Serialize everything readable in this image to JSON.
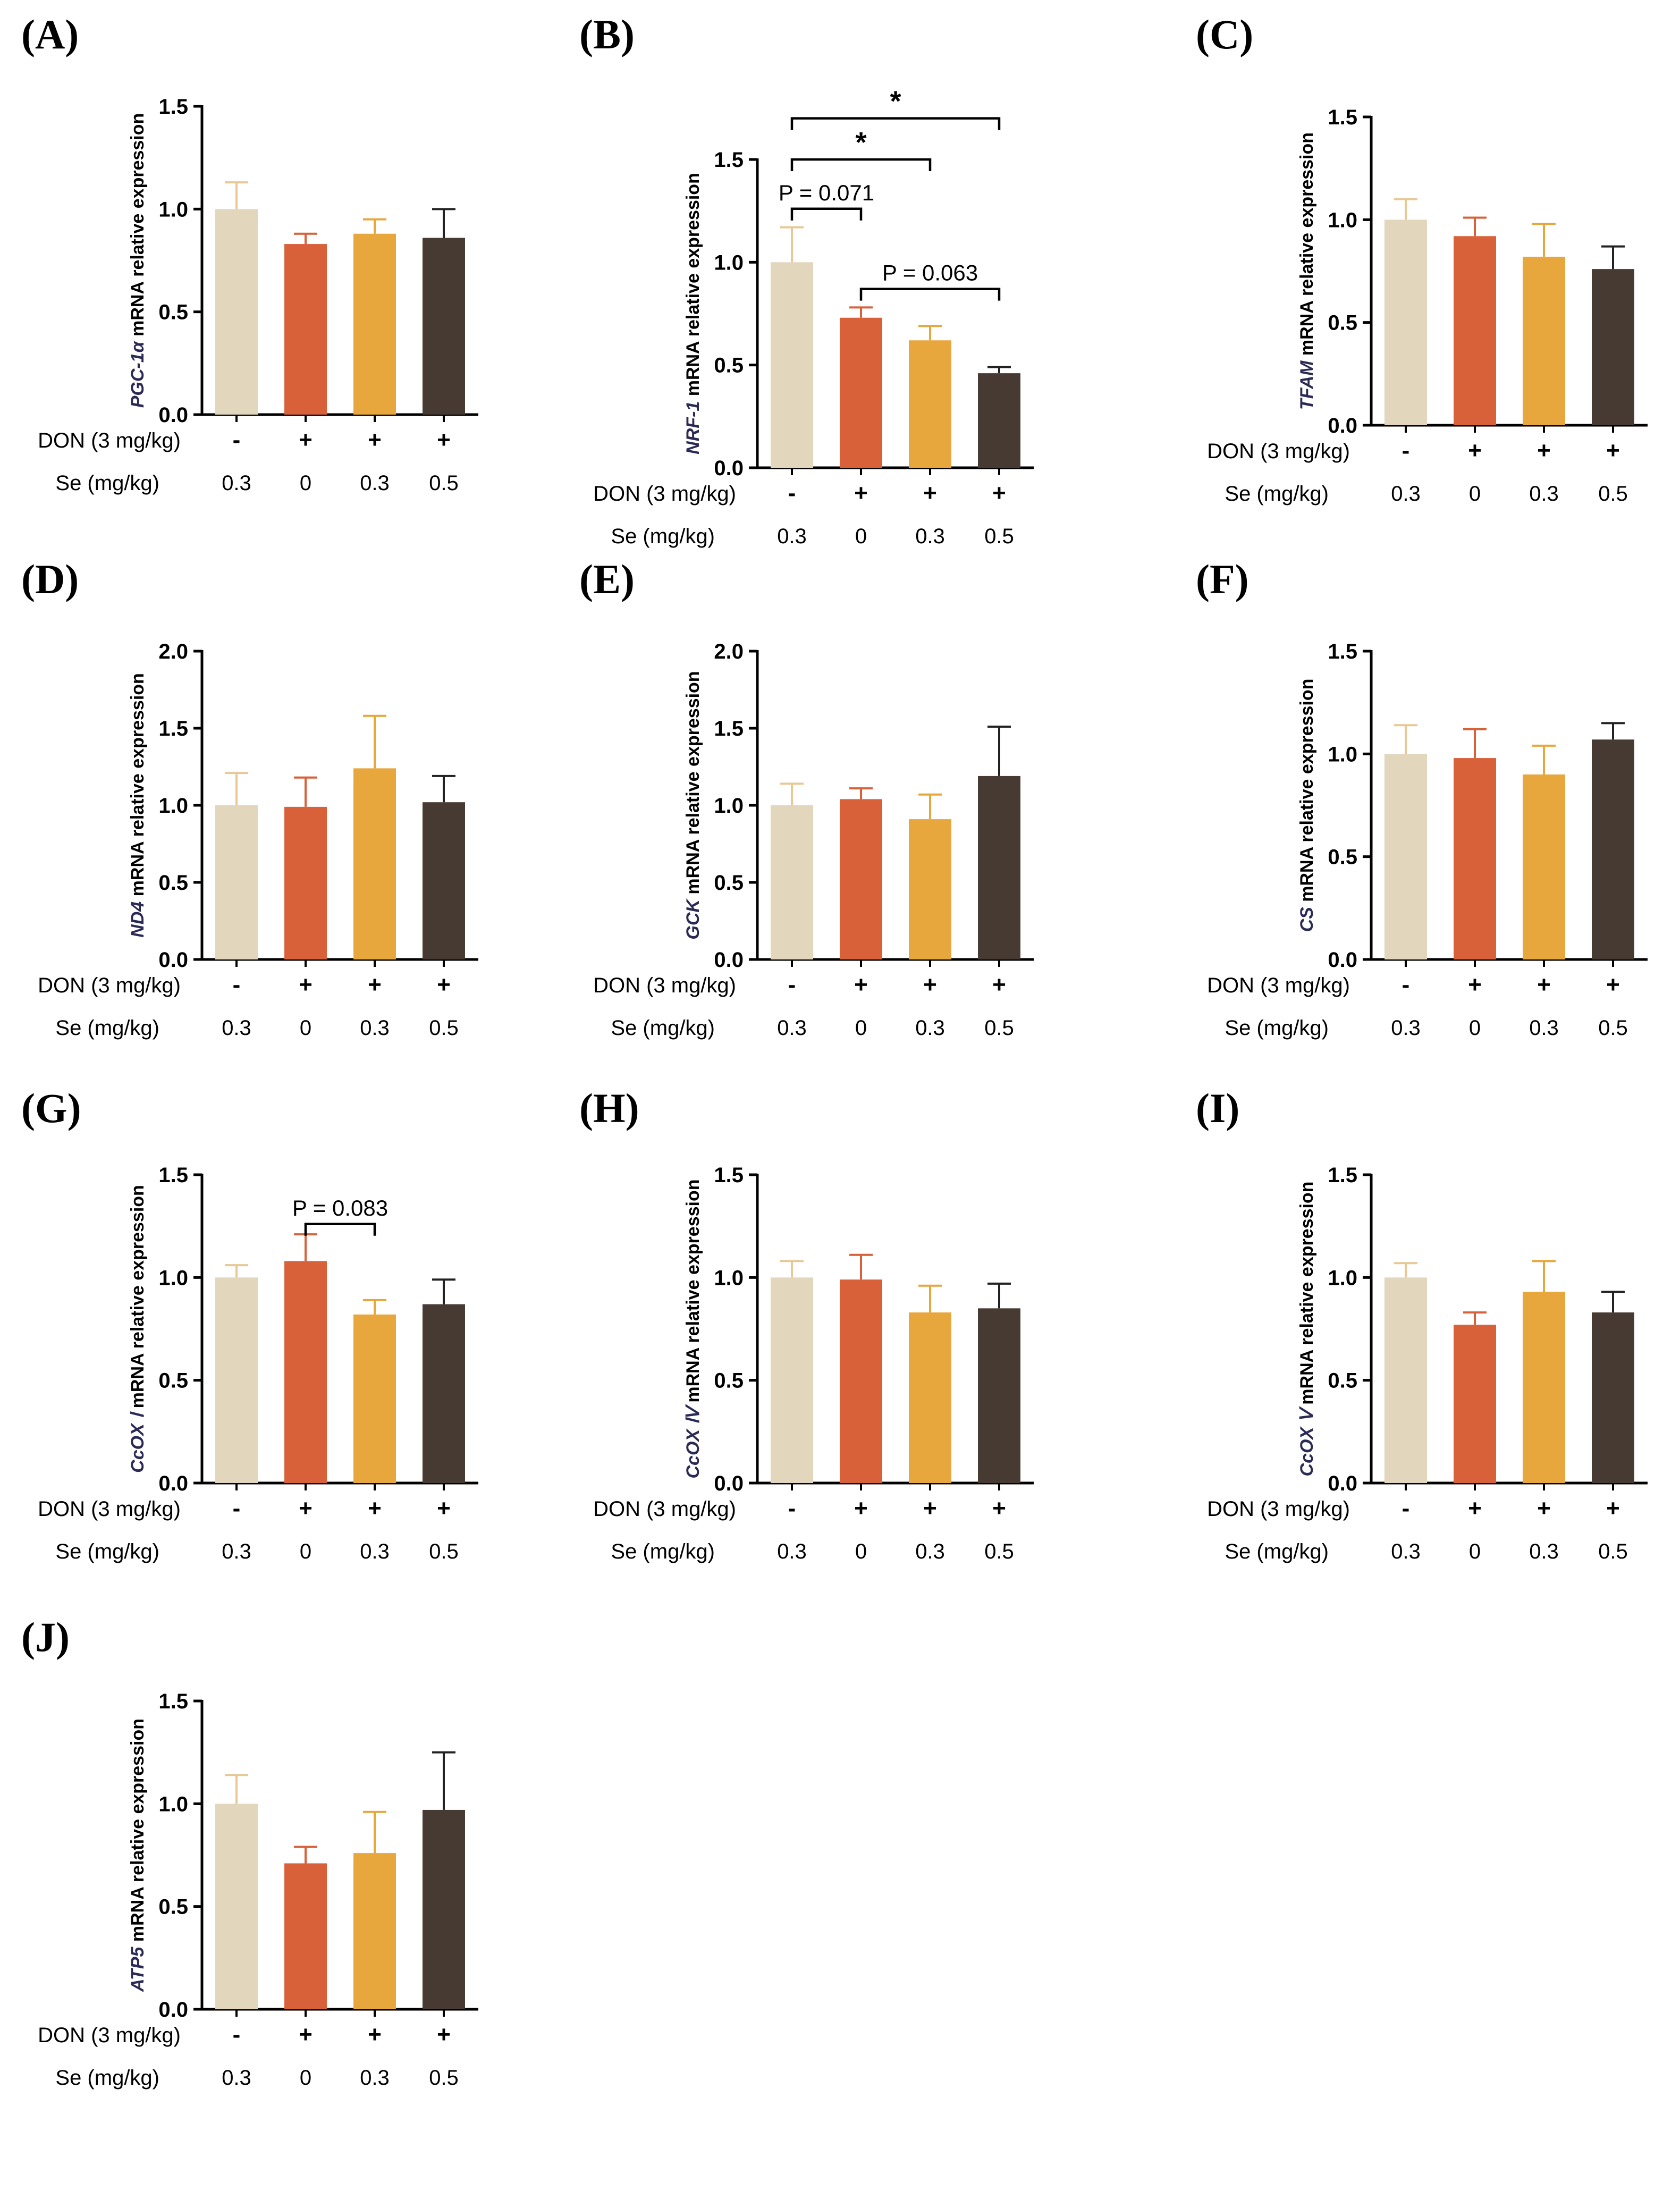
{
  "figure": {
    "row_labels": {
      "don": "DON (3 mg/kg)",
      "se": "Se (mg/kg)"
    },
    "don_marks": [
      "-",
      "+",
      "+",
      "+"
    ],
    "se_levels": [
      "0.3",
      "0",
      "0.3",
      "0.5"
    ],
    "bar_colors": [
      "#e2d6bd",
      "#d8613a",
      "#e8a73c",
      "#463a32"
    ],
    "error_colors": [
      "#e8c995",
      "#d8613a",
      "#e8a73c",
      "#222222"
    ],
    "axis_color": "#000000"
  },
  "chart_data": [
    {
      "panel": "(A)",
      "type": "bar",
      "gene": "PGC-1α",
      "ylabel_suffix": " mRNA relative expression",
      "categories": [
        "DON- / Se 0.3",
        "DON+ / Se 0",
        "DON+ / Se 0.3",
        "DON+ / Se 0.5"
      ],
      "values": [
        1.0,
        0.83,
        0.88,
        0.86
      ],
      "errors": [
        0.13,
        0.05,
        0.07,
        0.14
      ],
      "ylim": [
        0,
        1.5
      ],
      "yticks": [
        "0.0",
        "0.5",
        "1.0",
        "1.5"
      ],
      "annotations": []
    },
    {
      "panel": "(B)",
      "type": "bar",
      "gene": "NRF-1",
      "ylabel_suffix": " mRNA relative expression",
      "categories": [
        "DON- / Se 0.3",
        "DON+ / Se 0",
        "DON+ / Se 0.3",
        "DON+ / Se 0.5"
      ],
      "values": [
        1.0,
        0.73,
        0.62,
        0.46
      ],
      "errors": [
        0.17,
        0.05,
        0.07,
        0.03
      ],
      "ylim": [
        0,
        1.5
      ],
      "yticks": [
        "0.0",
        "0.5",
        "1.0",
        "1.5"
      ],
      "annotations": [
        {
          "from": 0,
          "to": 1,
          "y": 1.26,
          "label": "P = 0.071"
        },
        {
          "from": 1,
          "to": 3,
          "y": 0.87,
          "label": "P = 0.063"
        },
        {
          "from": 0,
          "to": 2,
          "y": 1.5,
          "label": "*"
        },
        {
          "from": 0,
          "to": 3,
          "y": 1.7,
          "label": "*"
        }
      ]
    },
    {
      "panel": "(C)",
      "type": "bar",
      "gene": "TFAM",
      "ylabel_suffix": " mRNA relative expression",
      "categories": [
        "DON- / Se 0.3",
        "DON+ / Se 0",
        "DON+ / Se 0.3",
        "DON+ / Se 0.5"
      ],
      "values": [
        1.0,
        0.92,
        0.82,
        0.76
      ],
      "errors": [
        0.1,
        0.09,
        0.16,
        0.11
      ],
      "ylim": [
        0,
        1.5
      ],
      "yticks": [
        "0.0",
        "0.5",
        "1.0",
        "1.5"
      ],
      "annotations": []
    },
    {
      "panel": "(D)",
      "type": "bar",
      "gene": "ND4",
      "ylabel_suffix": " mRNA relative expression",
      "categories": [
        "DON- / Se 0.3",
        "DON+ / Se 0",
        "DON+ / Se 0.3",
        "DON+ / Se 0.5"
      ],
      "values": [
        1.0,
        0.99,
        1.24,
        1.02
      ],
      "errors": [
        0.21,
        0.19,
        0.34,
        0.17
      ],
      "ylim": [
        0,
        2.0
      ],
      "yticks": [
        "0.0",
        "0.5",
        "1.0",
        "1.5",
        "2.0"
      ],
      "annotations": []
    },
    {
      "panel": "(E)",
      "type": "bar",
      "gene": "GCK",
      "ylabel_suffix": " mRNA relative expression",
      "categories": [
        "DON- / Se 0.3",
        "DON+ / Se 0",
        "DON+ / Se 0.3",
        "DON+ / Se 0.5"
      ],
      "values": [
        1.0,
        1.04,
        0.91,
        1.19
      ],
      "errors": [
        0.14,
        0.07,
        0.16,
        0.32
      ],
      "ylim": [
        0,
        2.0
      ],
      "yticks": [
        "0.0",
        "0.5",
        "1.0",
        "1.5",
        "2.0"
      ],
      "annotations": []
    },
    {
      "panel": "(F)",
      "type": "bar",
      "gene": "CS",
      "ylabel_suffix": " mRNA relative expression",
      "categories": [
        "DON- / Se 0.3",
        "DON+ / Se 0",
        "DON+ / Se 0.3",
        "DON+ / Se 0.5"
      ],
      "values": [
        1.0,
        0.98,
        0.9,
        1.07
      ],
      "errors": [
        0.14,
        0.14,
        0.14,
        0.08
      ],
      "ylim": [
        0,
        1.5
      ],
      "yticks": [
        "0.0",
        "0.5",
        "1.0",
        "1.5"
      ],
      "annotations": []
    },
    {
      "panel": "(G)",
      "type": "bar",
      "gene": "CcOX Ⅰ",
      "ylabel_suffix": " mRNA relative expression",
      "categories": [
        "DON- / Se 0.3",
        "DON+ / Se 0",
        "DON+ / Se 0.3",
        "DON+ / Se 0.5"
      ],
      "values": [
        1.0,
        1.08,
        0.82,
        0.87
      ],
      "errors": [
        0.06,
        0.13,
        0.07,
        0.12
      ],
      "ylim": [
        0,
        1.5
      ],
      "yticks": [
        "0.0",
        "0.5",
        "1.0",
        "1.5"
      ],
      "annotations": [
        {
          "from": 1,
          "to": 2,
          "y": 1.26,
          "label": "P = 0.083"
        }
      ]
    },
    {
      "panel": "(H)",
      "type": "bar",
      "gene": "CcOX Ⅳ",
      "ylabel_suffix": " mRNA relative expression",
      "categories": [
        "DON- / Se 0.3",
        "DON+ / Se 0",
        "DON+ / Se 0.3",
        "DON+ / Se 0.5"
      ],
      "values": [
        1.0,
        0.99,
        0.83,
        0.85
      ],
      "errors": [
        0.08,
        0.12,
        0.13,
        0.12
      ],
      "ylim": [
        0,
        1.5
      ],
      "yticks": [
        "0.0",
        "0.5",
        "1.0",
        "1.5"
      ],
      "annotations": []
    },
    {
      "panel": "(I)",
      "type": "bar",
      "gene": "CcOX Ⅴ",
      "ylabel_suffix": " mRNA relative expression",
      "categories": [
        "DON- / Se 0.3",
        "DON+ / Se 0",
        "DON+ / Se 0.3",
        "DON+ / Se 0.5"
      ],
      "values": [
        1.0,
        0.77,
        0.93,
        0.83
      ],
      "errors": [
        0.07,
        0.06,
        0.15,
        0.1
      ],
      "ylim": [
        0,
        1.5
      ],
      "yticks": [
        "0.0",
        "0.5",
        "1.0",
        "1.5"
      ],
      "annotations": []
    },
    {
      "panel": "(J)",
      "type": "bar",
      "gene": "ATP5",
      "ylabel_suffix": " mRNA relative expression",
      "categories": [
        "DON- / Se 0.3",
        "DON+ / Se 0",
        "DON+ / Se 0.3",
        "DON+ / Se 0.5"
      ],
      "values": [
        1.0,
        0.71,
        0.76,
        0.97
      ],
      "errors": [
        0.14,
        0.08,
        0.2,
        0.28
      ],
      "ylim": [
        0,
        1.5
      ],
      "yticks": [
        "0.0",
        "0.5",
        "1.0",
        "1.5"
      ],
      "annotations": []
    }
  ]
}
